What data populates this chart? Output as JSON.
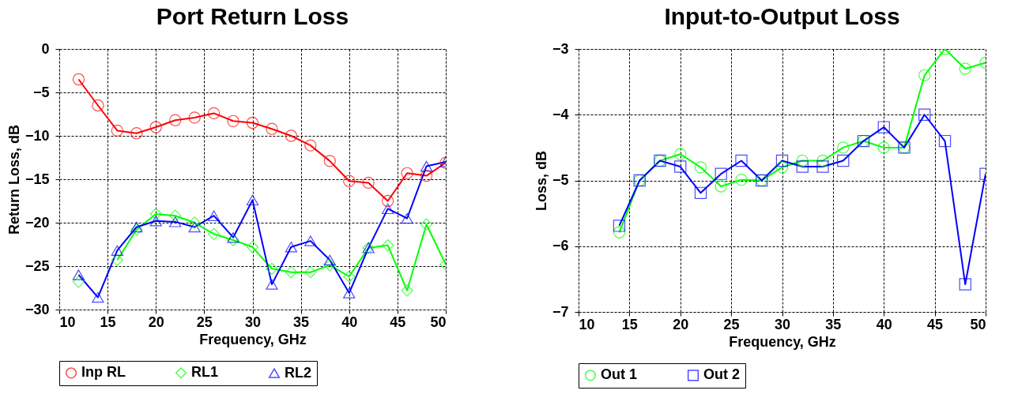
{
  "chart_data": [
    {
      "type": "line",
      "title": "Port Return Loss",
      "xlabel": "Frequency, GHz",
      "ylabel": "Return Loss, dB",
      "x": [
        12,
        14,
        16,
        18,
        20,
        22,
        24,
        26,
        28,
        30,
        32,
        34,
        36,
        38,
        40,
        42,
        44,
        46,
        48,
        50
      ],
      "xlim": [
        10,
        50
      ],
      "xticks": [
        10,
        15,
        20,
        25,
        30,
        35,
        40,
        45,
        50
      ],
      "ylim": [
        -30,
        0
      ],
      "yticks": [
        -30,
        -25,
        -20,
        -15,
        -10,
        -5,
        0
      ],
      "grid": true,
      "legend": "bottom",
      "line_style": "solid",
      "series": [
        {
          "name": "Inp RL",
          "color": "#ff0000",
          "marker": "circle",
          "values": [
            -3.5,
            -6.5,
            -9.4,
            -9.7,
            -9.0,
            -8.2,
            -7.9,
            -7.4,
            -8.3,
            -8.5,
            -9.2,
            -10.0,
            -11.1,
            -12.9,
            -15.2,
            -15.4,
            -17.5,
            -14.3,
            -14.6,
            -13.1
          ]
        },
        {
          "name": "RL1",
          "color": "#00ff00",
          "marker": "diamond",
          "values": [
            -26.8,
            null,
            -24.3,
            -20.8,
            -19.0,
            -19.2,
            -20.0,
            -21.3,
            -22.0,
            -22.8,
            -25.3,
            -25.7,
            -25.7,
            -24.9,
            -26.2,
            -22.9,
            -22.6,
            -27.8,
            -20.2,
            -24.8
          ]
        },
        {
          "name": "RL2",
          "color": "#0000ff",
          "marker": "triangle",
          "values": [
            -26.0,
            -28.6,
            -23.2,
            -20.5,
            -19.8,
            -19.9,
            -20.5,
            -19.2,
            -21.7,
            -17.4,
            -27.1,
            -22.8,
            -22.1,
            -24.3,
            -28.1,
            -22.9,
            -18.4,
            -19.5,
            -13.5,
            -13.0
          ]
        }
      ]
    },
    {
      "type": "line",
      "title": "Input-to-Output Loss",
      "xlabel": "Frequency, GHz",
      "ylabel": "Loss, dB",
      "x": [
        14,
        16,
        18,
        20,
        22,
        24,
        26,
        28,
        30,
        32,
        34,
        36,
        38,
        40,
        42,
        44,
        46,
        48,
        50
      ],
      "xlim": [
        10,
        50
      ],
      "xticks": [
        10,
        15,
        20,
        25,
        30,
        35,
        40,
        45,
        50
      ],
      "ylim": [
        -7,
        -3
      ],
      "yticks": [
        -7,
        -6,
        -5,
        -4,
        -3
      ],
      "grid": true,
      "legend": "bottom",
      "line_style": "solid",
      "series": [
        {
          "name": "Out 1",
          "color": "#00ff00",
          "marker": "circle",
          "values": [
            -5.79,
            -5.0,
            -4.7,
            -4.6,
            -4.8,
            -5.09,
            -4.99,
            -5.0,
            -4.8,
            -4.7,
            -4.7,
            -4.5,
            -4.4,
            -4.5,
            -4.5,
            -3.4,
            -3.0,
            -3.3,
            -3.21
          ]
        },
        {
          "name": "Out 2",
          "color": "#0000ff",
          "marker": "square",
          "values": [
            -5.69,
            -5.0,
            -4.7,
            -4.79,
            -5.19,
            -4.9,
            -4.7,
            -5.0,
            -4.7,
            -4.79,
            -4.79,
            -4.7,
            -4.4,
            -4.19,
            -4.5,
            -4.0,
            -4.4,
            -6.58,
            -4.9
          ]
        }
      ]
    }
  ]
}
